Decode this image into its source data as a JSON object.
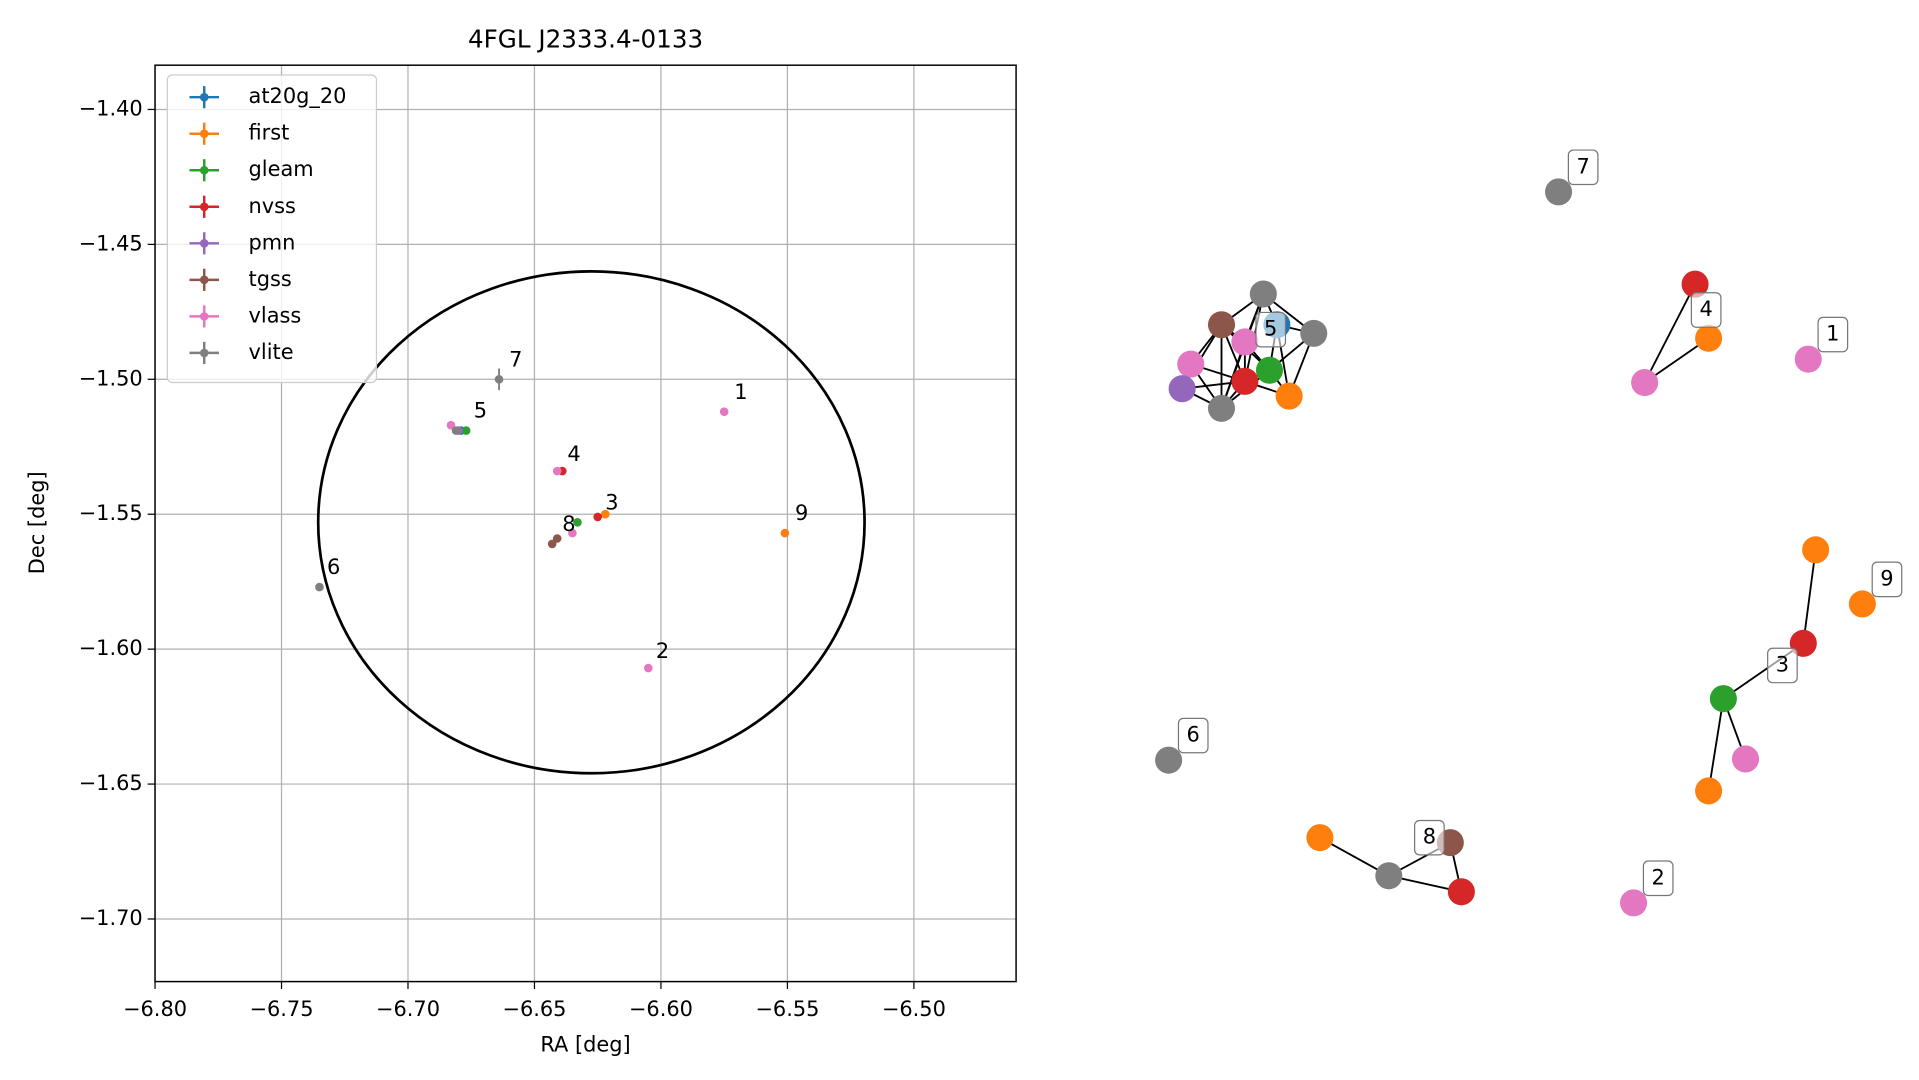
{
  "chart_data": [
    {
      "type": "scatter",
      "title": "4FGL J2333.4-0133",
      "xlabel": "RA [deg]",
      "ylabel": "Dec [deg]",
      "xlim": [
        -6.8,
        -6.4596
      ],
      "ylim": [
        -1.7232,
        -1.3836
      ],
      "xticks": [
        {
          "value": -6.8,
          "label": "−6.80"
        },
        {
          "value": -6.75,
          "label": "−6.75"
        },
        {
          "value": -6.7,
          "label": "−6.70"
        },
        {
          "value": -6.65,
          "label": "−6.65"
        },
        {
          "value": -6.6,
          "label": "−6.60"
        },
        {
          "value": -6.55,
          "label": "−6.55"
        },
        {
          "value": -6.5,
          "label": "−6.50"
        }
      ],
      "yticks": [
        {
          "value": -1.4,
          "label": "−1.40"
        },
        {
          "value": -1.45,
          "label": "−1.45"
        },
        {
          "value": -1.5,
          "label": "−1.50"
        },
        {
          "value": -1.55,
          "label": "−1.55"
        },
        {
          "value": -1.6,
          "label": "−1.60"
        },
        {
          "value": -1.65,
          "label": "−1.65"
        },
        {
          "value": -1.7,
          "label": "−1.70"
        }
      ],
      "grid": true,
      "legend": "upper-left",
      "series": [
        {
          "name": "at20g_20",
          "color": "#1f77b4",
          "x": [
            -6.679
          ],
          "y": [
            -1.519
          ]
        },
        {
          "name": "first",
          "color": "#ff7f0e",
          "x": [
            -6.551,
            -6.622
          ],
          "y": [
            -1.557,
            -1.55
          ]
        },
        {
          "name": "gleam",
          "color": "#2ca02c",
          "x": [
            -6.677,
            -6.633
          ],
          "y": [
            -1.519,
            -1.553
          ]
        },
        {
          "name": "nvss",
          "color": "#d62728",
          "x": [
            -6.639,
            -6.625
          ],
          "y": [
            -1.534,
            -1.551
          ]
        },
        {
          "name": "pmn",
          "color": "#9467bd",
          "x": [
            -6.68
          ],
          "y": [
            -1.519
          ]
        },
        {
          "name": "tgss",
          "color": "#8c564b",
          "x": [
            -6.643,
            -6.641
          ],
          "y": [
            -1.561,
            -1.559
          ]
        },
        {
          "name": "vlass",
          "color": "#e377c2",
          "x": [
            -6.575,
            -6.605,
            -6.641,
            -6.635,
            -6.683
          ],
          "y": [
            -1.512,
            -1.607,
            -1.534,
            -1.557,
            -1.517
          ]
        },
        {
          "name": "vlite",
          "color": "#7f7f7f",
          "x": [
            -6.664,
            -6.735,
            -6.681
          ],
          "y": [
            -1.5,
            -1.577,
            -1.519
          ],
          "yerr": [
            0.004,
            0.001,
            0.001
          ]
        }
      ],
      "annotations": [
        {
          "text": "1",
          "x": -6.571,
          "y": -1.505
        },
        {
          "text": "2",
          "x": -6.602,
          "y": -1.601
        },
        {
          "text": "3",
          "x": -6.622,
          "y": -1.546
        },
        {
          "text": "4",
          "x": -6.637,
          "y": -1.528
        },
        {
          "text": "5",
          "x": -6.674,
          "y": -1.512
        },
        {
          "text": "6",
          "x": -6.732,
          "y": -1.57
        },
        {
          "text": "7",
          "x": -6.66,
          "y": -1.493
        },
        {
          "text": "8",
          "x": -6.639,
          "y": -1.554
        },
        {
          "text": "9",
          "x": -6.547,
          "y": -1.55
        }
      ],
      "ellipse": {
        "x": -6.6275,
        "y": -1.553,
        "width": 0.216,
        "height": 0.186
      }
    },
    {
      "type": "network",
      "nodes": [
        "#7f7f7f",
        "#d62728",
        "#ff7f0e",
        "#e377c2",
        "#e377c2",
        "#7f7f7f",
        "#8c564b",
        "#1f77b4",
        "#7f7f7f",
        "#e377c2",
        "#e377c2",
        "#2ca02c",
        "#9467bd",
        "#d62728",
        "#ff7f0e",
        "#7f7f7f",
        "#ff7f0e",
        "#ff7f0e",
        "#d62728",
        "#2ca02c",
        "#e377c2",
        "#ff7f0e",
        "#7f7f7f",
        "#ff7f0e",
        "#7f7f7f",
        "#8c564b",
        "#d62728",
        "#e377c2"
      ],
      "edges": [
        [
          1,
          3
        ],
        [
          2,
          3
        ],
        [
          5,
          6
        ],
        [
          5,
          7
        ],
        [
          5,
          8
        ],
        [
          5,
          9
        ],
        [
          5,
          13
        ],
        [
          5,
          15
        ],
        [
          6,
          9
        ],
        [
          6,
          10
        ],
        [
          6,
          12
        ],
        [
          6,
          13
        ],
        [
          6,
          15
        ],
        [
          6,
          11
        ],
        [
          7,
          8
        ],
        [
          7,
          11
        ],
        [
          7,
          14
        ],
        [
          8,
          11
        ],
        [
          8,
          14
        ],
        [
          9,
          11
        ],
        [
          9,
          13
        ],
        [
          10,
          12
        ],
        [
          10,
          13
        ],
        [
          10,
          15
        ],
        [
          11,
          13
        ],
        [
          11,
          14
        ],
        [
          12,
          13
        ],
        [
          12,
          15
        ],
        [
          13,
          15
        ],
        [
          13,
          14
        ],
        [
          15,
          11
        ],
        [
          15,
          9
        ],
        [
          16,
          18
        ],
        [
          18,
          19
        ],
        [
          19,
          20
        ],
        [
          19,
          21
        ],
        [
          23,
          24
        ],
        [
          24,
          25
        ],
        [
          24,
          26
        ],
        [
          25,
          26
        ]
      ],
      "labels": [
        {
          "text": "7",
          "node": 0
        },
        {
          "text": "4",
          "node": 2
        },
        {
          "text": "1",
          "node": 4
        },
        {
          "text": "5",
          "node": 7
        },
        {
          "text": "9",
          "node": 17
        },
        {
          "text": "3",
          "node": 19
        },
        {
          "text": "6",
          "node": 22
        },
        {
          "text": "8",
          "node": 24
        },
        {
          "text": "2",
          "node": 27
        }
      ]
    }
  ]
}
